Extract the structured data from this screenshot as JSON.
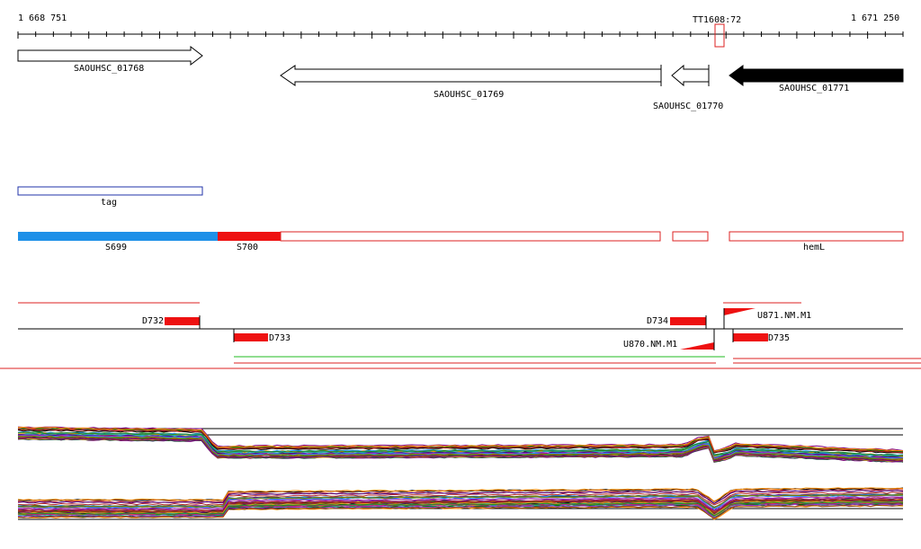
{
  "ruler": {
    "start_label": "1 668 751",
    "end_label": "1 671 250",
    "marker_label": "TT1608:72"
  },
  "genes": [
    {
      "label": "SAOUHSC_01768",
      "strand": "+",
      "filled": false
    },
    {
      "label": "SAOUHSC_01769",
      "strand": "-",
      "filled": false
    },
    {
      "label": "SAOUHSC_01770",
      "strand": "-",
      "filled": false
    },
    {
      "label": "SAOUHSC_01771",
      "strand": "-",
      "filled": true
    }
  ],
  "tag_track": {
    "label": "tag",
    "color": "#2233aa"
  },
  "segments": {
    "labels": [
      "S699",
      "S700",
      "hemL"
    ],
    "colors": {
      "S699": "#1e90e8",
      "S700": "#ee1111",
      "outline": "#dd2222"
    }
  },
  "features": {
    "labels": [
      "D732",
      "D733",
      "D734",
      "U870.NM.M1",
      "U871.NM.M1",
      "D735"
    ],
    "colors": {
      "red": "#ee1111",
      "green": "#22bb22"
    }
  },
  "expression": {
    "line_colors": [
      "#000000",
      "#8b4513",
      "#228b22",
      "#ff8c00",
      "#800080",
      "#1e90ff",
      "#b22222",
      "#808000",
      "#20b2aa",
      "#c71585",
      "#2f4f4f",
      "#daa520",
      "#4b0082",
      "#cd5c5c",
      "#006400",
      "#9932cc"
    ]
  }
}
